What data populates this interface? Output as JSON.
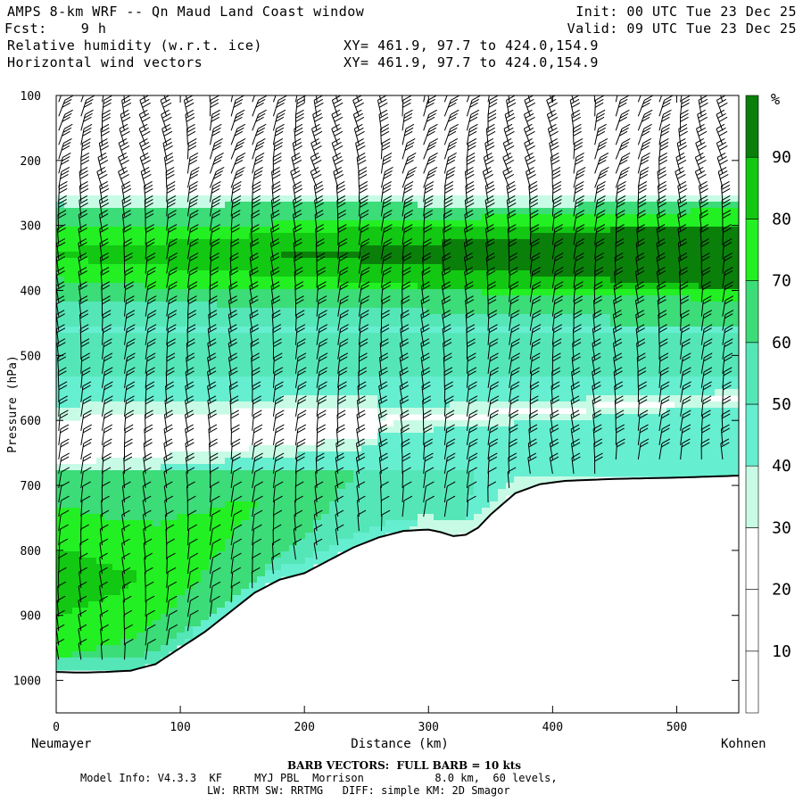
{
  "header": {
    "title": "AMPS 8-km WRF -- Qn Maud Land Coast window",
    "forecast": "Fcst:    9 h",
    "init": "Init: 00 UTC Tue 23 Dec 25",
    "valid": "Valid: 09 UTC Tue 23 Dec 25",
    "field1": "Relative humidity (w.r.t. ice)",
    "field2": "Horizontal wind vectors",
    "xy1": "XY= 461.9, 97.7 to 424.0,154.9",
    "xy2": "XY= 461.9, 97.7 to 424.0,154.9"
  },
  "footer": {
    "barb_note": "BARB VECTORS:  FULL BARB = 10 kts",
    "model_line1": "Model Info: V4.3.3  KF     MYJ PBL  Morrison           8.0 km,  60 levels,",
    "model_line2": "LW: RRTM SW: RRTMG   DIFF: simple KM: 2D Smagor"
  },
  "chart_data": {
    "type": "heatmap",
    "title": "Relative humidity (w.r.t. ice) and horizontal wind vectors, cross-section",
    "xlabel": "Distance (km)",
    "ylabel": "Pressure (hPa)",
    "x_start_label": "Neumayer",
    "x_end_label": "Kohnen",
    "xlim": [
      0,
      550
    ],
    "ylim": [
      1050,
      100
    ],
    "x_ticks": [
      0,
      100,
      200,
      300,
      400,
      500
    ],
    "y_ticks": [
      100,
      200,
      300,
      400,
      500,
      600,
      700,
      800,
      900,
      1000
    ],
    "colorbar": {
      "unit": "%",
      "levels": [
        10,
        20,
        30,
        40,
        50,
        60,
        70,
        80,
        90
      ],
      "colors": [
        "#ffffff",
        "#ffffff",
        "#ffffff",
        "#c8fbe6",
        "#66eed0",
        "#55e6b8",
        "#3cdc78",
        "#22f022",
        "#12c812",
        "#0a800a"
      ]
    },
    "terrain_surface": {
      "distance_km": [
        0,
        20,
        40,
        60,
        80,
        100,
        120,
        140,
        160,
        180,
        200,
        220,
        240,
        260,
        280,
        300,
        310,
        320,
        330,
        340,
        350,
        370,
        390,
        410,
        450,
        500,
        550
      ],
      "pressure_hPa": [
        987,
        988,
        987,
        985,
        975,
        950,
        925,
        895,
        865,
        845,
        835,
        815,
        795,
        780,
        770,
        768,
        772,
        778,
        776,
        765,
        745,
        712,
        698,
        693,
        690,
        688,
        685
      ]
    },
    "rh_layers": [
      {
        "description": "moist upper layer",
        "pressure_top_hPa": 255,
        "pressure_bottom_hPa": 450,
        "rh_range_pct": [
          40,
          95
        ]
      },
      {
        "description": "dry mid layer",
        "pressure_top_hPa": 560,
        "pressure_bottom_hPa": 680,
        "rh_range_pct": [
          10,
          30
        ]
      },
      {
        "description": "moist boundary layer near Neumayer",
        "pressure_top_hPa": 700,
        "pressure_bottom_hPa": 990,
        "rh_range_pct": [
          60,
          90
        ]
      }
    ],
    "wind_barb_columns_km": [
      2,
      20,
      37,
      55,
      72,
      89,
      106,
      124,
      141,
      158,
      175,
      193,
      210,
      227,
      244,
      262,
      279,
      296,
      313,
      331,
      348,
      365,
      382,
      400,
      417,
      434,
      451,
      469,
      486,
      503,
      520,
      537
    ],
    "barb_note": "FULL BARB = 10 kts"
  }
}
